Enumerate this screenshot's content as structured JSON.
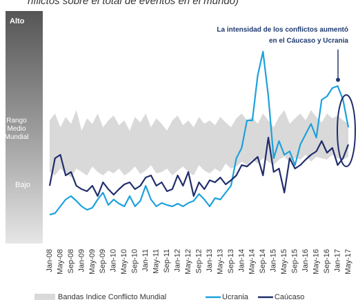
{
  "chart_data": {
    "type": "line",
    "subtitle": "nflictos sobre el total de eventos en el mundo)",
    "y_levels": [
      "Alto",
      "Rango Medio Mundial",
      "Bajo"
    ],
    "annotation": [
      "La intensidad de los conflictos aumentó",
      "en el Cáucaso y Ucrania"
    ],
    "categories": [
      "Jan-08",
      null,
      "May-08",
      null,
      "Sep-08",
      null,
      "Jan-09",
      null,
      "May-09",
      null,
      "Sep-09",
      null,
      "Jan-10",
      null,
      "May-10",
      null,
      "Sep-10",
      null,
      "Jan-11",
      null,
      "May-11",
      null,
      "Sep-11",
      null,
      "Jan-12",
      null,
      "May-12",
      null,
      "Sep-12",
      null,
      "Jan-13",
      null,
      "May-13",
      null,
      "Sep-13",
      null,
      "Jan-14",
      null,
      "May-14",
      null,
      "Sep-14",
      null,
      "Jan-15",
      null,
      "May-15",
      null,
      "Sep-15",
      null,
      "Jan-16",
      null,
      "May-16",
      null,
      "Sep-16",
      null,
      "Jan-17",
      null,
      "May-17"
    ],
    "ylim": [
      0,
      300
    ],
    "band": {
      "name": "Bandas Indice Conflicto Mundial",
      "color": "#d9d9d9",
      "upper": [
        175,
        185,
        165,
        180,
        170,
        190,
        160,
        178,
        170,
        185,
        165,
        175,
        182,
        168,
        175,
        160,
        180,
        172,
        185,
        165,
        178,
        170,
        160,
        175,
        182,
        168,
        175,
        165,
        180,
        170,
        175,
        168,
        180,
        172,
        165,
        178,
        185,
        175,
        180,
        170,
        185,
        175,
        165,
        180,
        190,
        170,
        178,
        185,
        175,
        190,
        180,
        172,
        185,
        178,
        182,
        175,
        170
      ],
      "lower": [
        100,
        95,
        105,
        98,
        92,
        105,
        100,
        95,
        108,
        100,
        95,
        102,
        98,
        105,
        95,
        100,
        108,
        97,
        102,
        110,
        98,
        100,
        105,
        95,
        102,
        108,
        100,
        95,
        110,
        102,
        98,
        105,
        100,
        112,
        105,
        108,
        115,
        110,
        118,
        112,
        120,
        115,
        110,
        118,
        122,
        115,
        120,
        118,
        125,
        115,
        122,
        120,
        118,
        125,
        120,
        118,
        122
      ]
    },
    "series": [
      {
        "name": "Ucrania",
        "color": "#1ba1dc",
        "values": [
          38,
          40,
          50,
          60,
          65,
          58,
          50,
          45,
          48,
          60,
          70,
          52,
          60,
          54,
          50,
          65,
          50,
          58,
          80,
          60,
          50,
          55,
          52,
          50,
          54,
          50,
          55,
          58,
          68,
          60,
          50,
          62,
          60,
          70,
          80,
          120,
          135,
          175,
          175,
          240,
          275,
          210,
          120,
          145,
          125,
          130,
          110,
          140,
          155,
          170,
          150,
          205,
          210,
          222,
          225,
          205,
          165
        ]
      },
      {
        "name": "Caúcaso",
        "color": "#1f2d6b",
        "values": [
          80,
          120,
          125,
          95,
          100,
          80,
          75,
          72,
          80,
          65,
          85,
          75,
          67,
          75,
          82,
          85,
          75,
          80,
          92,
          95,
          80,
          85,
          72,
          75,
          95,
          80,
          100,
          65,
          85,
          75,
          88,
          85,
          92,
          82,
          88,
          95,
          110,
          108,
          115,
          122,
          95,
          150,
          100,
          105,
          70,
          120,
          105,
          110,
          118,
          125,
          130,
          145,
          128,
          135,
          110,
          120,
          140
        ]
      }
    ]
  }
}
